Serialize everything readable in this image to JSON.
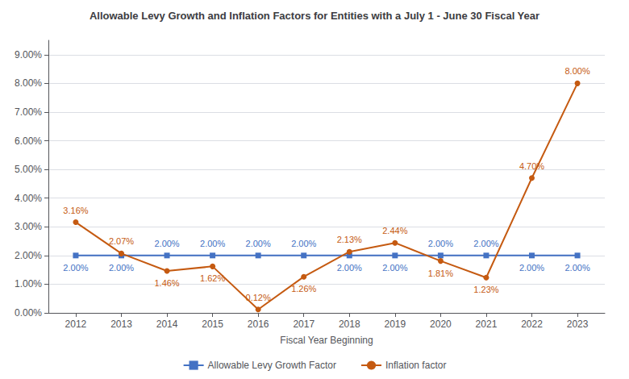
{
  "chart_data": {
    "type": "line",
    "title": "Allowable Levy Growth and Inflation Factors for Entities with a July 1 - June 30 Fiscal Year",
    "xlabel": "Fiscal Year Beginning",
    "x": [
      2012,
      2013,
      2014,
      2015,
      2016,
      2017,
      2018,
      2019,
      2020,
      2021,
      2022,
      2023
    ],
    "xlim": [
      2011.4,
      2023.6
    ],
    "xticks": [
      2012,
      2013,
      2014,
      2015,
      2016,
      2017,
      2018,
      2019,
      2020,
      2021,
      2022,
      2023
    ],
    "ylim": [
      0.0,
      9.5
    ],
    "yticks": [
      {
        "value": 0.0,
        "label": "0.00%"
      },
      {
        "value": 1.0,
        "label": "1.00%"
      },
      {
        "value": 2.0,
        "label": "2.00%"
      },
      {
        "value": 3.0,
        "label": "3.00%"
      },
      {
        "value": 4.0,
        "label": "4.00%"
      },
      {
        "value": 5.0,
        "label": "5.00%"
      },
      {
        "value": 6.0,
        "label": "6.00%"
      },
      {
        "value": 7.0,
        "label": "7.00%"
      },
      {
        "value": 8.0,
        "label": "8.00%"
      },
      {
        "value": 9.0,
        "label": "9.00%"
      }
    ],
    "grid": true,
    "legend": "bottom",
    "data_labels": true,
    "series": [
      {
        "name": "Allowable Levy Growth Factor",
        "color": "#4472C4",
        "marker": "square",
        "values": [
          2.0,
          2.0,
          2.0,
          2.0,
          2.0,
          2.0,
          2.0,
          2.0,
          2.0,
          2.0,
          2.0,
          2.0
        ],
        "value_labels": [
          "2.00%",
          "2.00%",
          "2.00%",
          "2.00%",
          "2.00%",
          "2.00%",
          "2.00%",
          "2.00%",
          "2.00%",
          "2.00%",
          "2.00%",
          "2.00%"
        ]
      },
      {
        "name": "Inflation factor",
        "color": "#C55A11",
        "marker": "circle",
        "values": [
          3.16,
          2.07,
          1.46,
          1.62,
          0.12,
          1.26,
          2.13,
          2.44,
          1.81,
          1.23,
          4.7,
          8.0
        ],
        "value_labels": [
          "3.16%",
          "2.07%",
          "1.46%",
          "1.62%",
          "0.12%",
          "1.26%",
          "2.13%",
          "2.44%",
          "1.81%",
          "1.23%",
          "4.70%",
          "8.00%"
        ]
      }
    ]
  }
}
